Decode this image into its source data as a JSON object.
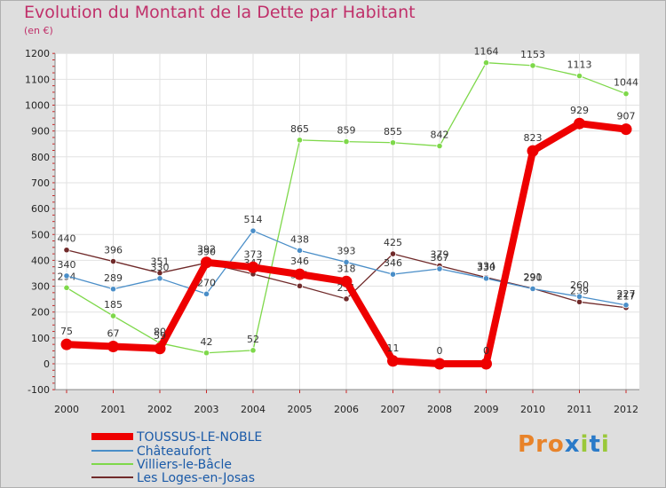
{
  "title": "Evolution du Montant de la Dette par Habitant",
  "subtitle": "(en €)",
  "logo": "Proxiti",
  "chart_data": {
    "type": "line",
    "title": "Evolution du Montant de la Dette par Habitant",
    "subtitle": "(en €)",
    "xlabel": "",
    "ylabel": "",
    "x": [
      "2000",
      "2001",
      "2002",
      "2003",
      "2004",
      "2005",
      "2006",
      "2007",
      "2008",
      "2009",
      "2010",
      "2011",
      "2012"
    ],
    "ylim": [
      -100,
      1200
    ],
    "yticks": [
      -100,
      0,
      100,
      200,
      300,
      400,
      500,
      600,
      700,
      800,
      900,
      1000,
      1100,
      1200
    ],
    "grid": true,
    "legend_position": "bottom-left",
    "series": [
      {
        "name": "TOUSSUS-LE-NOBLE",
        "color": "#ee0000",
        "values": [
          75,
          67,
          59,
          392,
          373,
          346,
          318,
          11,
          0,
          0,
          823,
          929,
          907
        ]
      },
      {
        "name": "Châteaufort",
        "color": "#4a8ec8",
        "values": [
          340,
          289,
          330,
          270,
          514,
          438,
          393,
          346,
          367,
          330,
          290,
          260,
          227
        ]
      },
      {
        "name": "Villiers-le-Bâcle",
        "color": "#7ed84a",
        "values": [
          294,
          185,
          80,
          42,
          52,
          865,
          859,
          855,
          842,
          1164,
          1153,
          1113,
          1044
        ]
      },
      {
        "name": "Les Loges-en-Josas",
        "color": "#702a2a",
        "values": [
          440,
          396,
          351,
          390,
          347,
          301,
          251,
          425,
          379,
          334,
          291,
          239,
          217
        ]
      }
    ]
  }
}
